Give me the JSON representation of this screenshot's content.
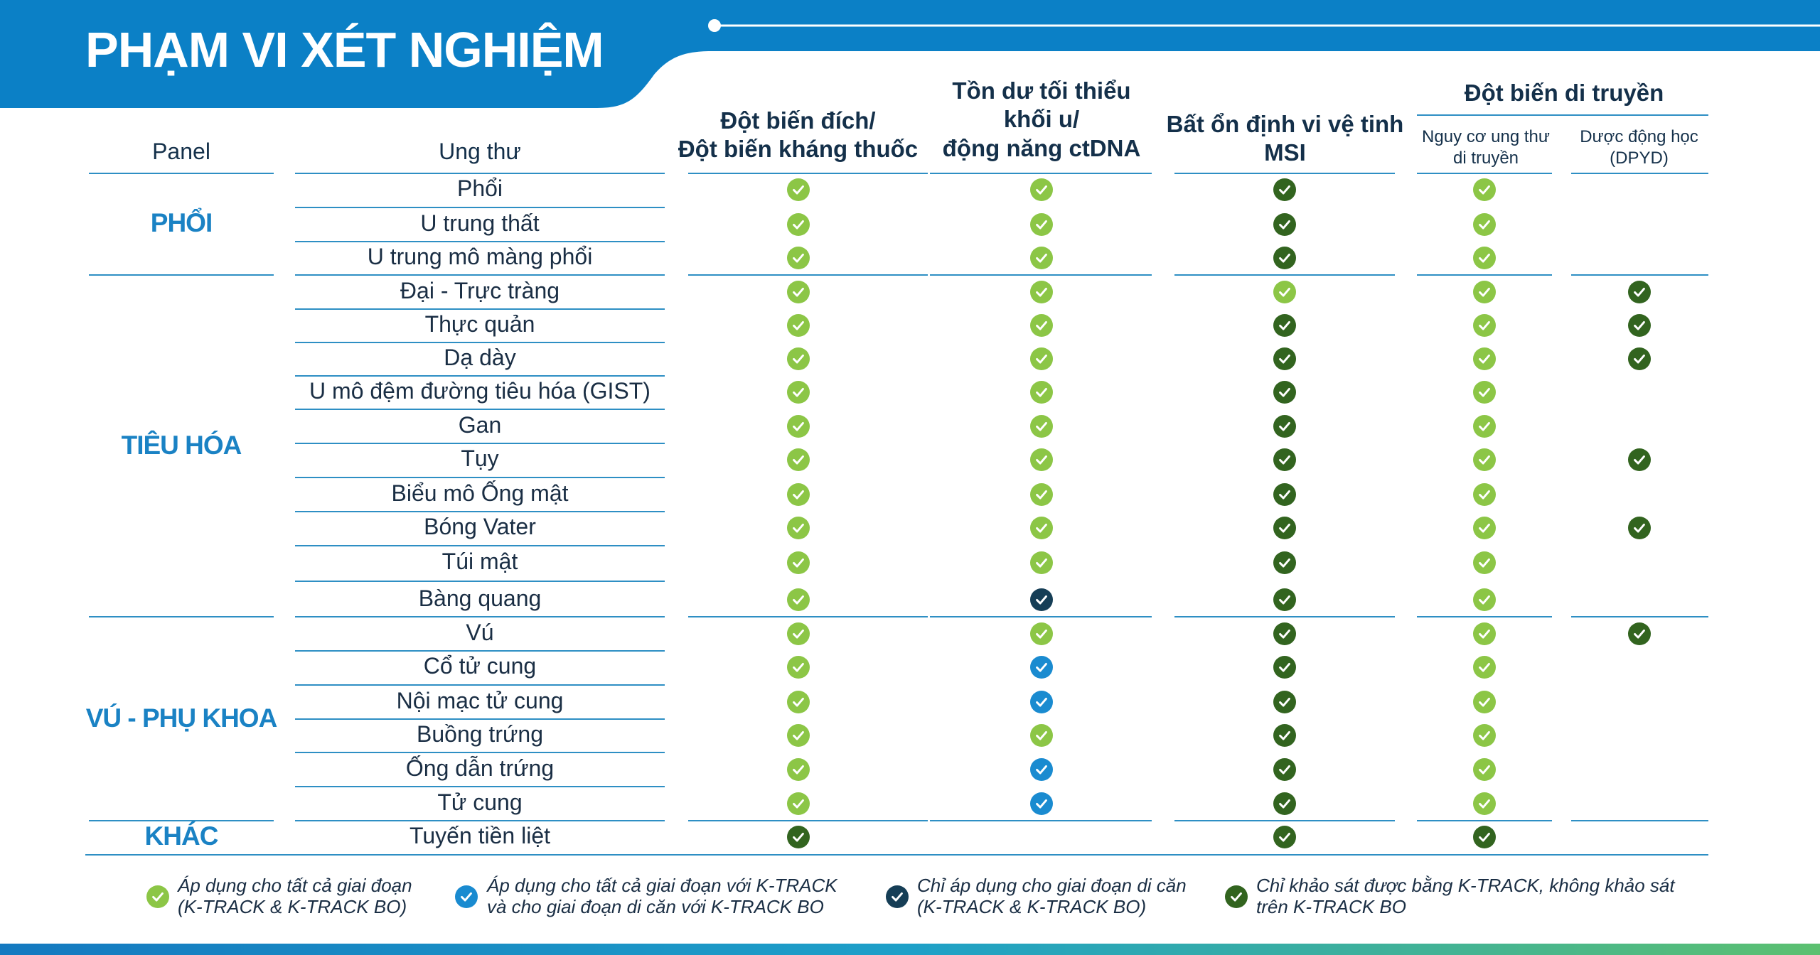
{
  "title": "PHẠM VI XÉT NGHIỆM",
  "colors": {
    "brand_blue": "#0b80c6",
    "light_green": "#8cc646",
    "blue": "#1a8bd0",
    "dark_navy": "#163e56",
    "dark_green": "#32641f"
  },
  "headers": {
    "panel": "Panel",
    "cancer": "Ung thư",
    "c1": [
      "Đột biến đích/",
      "Đột biến kháng thuốc"
    ],
    "c2": [
      "Tồn dư tối thiểu",
      "khối u/",
      "động năng ctDNA"
    ],
    "c3": [
      "Bất ổn định vi vệ tinh",
      "MSI"
    ],
    "group": "Đột biến di truyền",
    "c4": [
      "Nguy cơ ung thư",
      "di truyền"
    ],
    "c5": [
      "Dược động học",
      "(DPYD)"
    ]
  },
  "panels": [
    {
      "name": "PHỔI"
    },
    {
      "name": "TIÊU HÓA"
    },
    {
      "name": "VÚ - PHỤ KHOA"
    },
    {
      "name": "KHÁC"
    }
  ],
  "rows": [
    {
      "cancer": "Phổi",
      "marks": [
        "lg",
        "lg",
        "dg",
        "lg",
        ""
      ]
    },
    {
      "cancer": "U trung thất",
      "marks": [
        "lg",
        "lg",
        "dg",
        "lg",
        ""
      ]
    },
    {
      "cancer": "U trung mô màng phổi",
      "marks": [
        "lg",
        "lg",
        "dg",
        "lg",
        ""
      ]
    },
    {
      "cancer": "Đại - Trực tràng",
      "marks": [
        "lg",
        "lg",
        "lg",
        "lg",
        "dg"
      ]
    },
    {
      "cancer": "Thực quản",
      "marks": [
        "lg",
        "lg",
        "dg",
        "lg",
        "dg"
      ]
    },
    {
      "cancer": "Dạ dày",
      "marks": [
        "lg",
        "lg",
        "dg",
        "lg",
        "dg"
      ]
    },
    {
      "cancer": "U mô đệm đường tiêu hóa (GIST)",
      "marks": [
        "lg",
        "lg",
        "dg",
        "lg",
        ""
      ]
    },
    {
      "cancer": "Gan",
      "marks": [
        "lg",
        "lg",
        "dg",
        "lg",
        ""
      ]
    },
    {
      "cancer": "Tụy",
      "marks": [
        "lg",
        "lg",
        "dg",
        "lg",
        "dg"
      ]
    },
    {
      "cancer": "Biểu mô Ống mật",
      "marks": [
        "lg",
        "lg",
        "dg",
        "lg",
        ""
      ]
    },
    {
      "cancer": "Bóng Vater",
      "marks": [
        "lg",
        "lg",
        "dg",
        "lg",
        "dg"
      ]
    },
    {
      "cancer": "Túi mật",
      "marks": [
        "lg",
        "lg",
        "dg",
        "lg",
        ""
      ]
    },
    {
      "cancer": "Bàng quang",
      "marks": [
        "lg",
        "nv",
        "dg",
        "lg",
        ""
      ]
    },
    {
      "cancer": "Vú",
      "marks": [
        "lg",
        "lg",
        "dg",
        "lg",
        "dg"
      ]
    },
    {
      "cancer": "Cổ tử cung",
      "marks": [
        "lg",
        "bl",
        "dg",
        "lg",
        ""
      ]
    },
    {
      "cancer": "Nội mạc tử cung",
      "marks": [
        "lg",
        "bl",
        "dg",
        "lg",
        ""
      ]
    },
    {
      "cancer": "Buồng trứng",
      "marks": [
        "lg",
        "lg",
        "dg",
        "lg",
        ""
      ]
    },
    {
      "cancer": "Ống dẫn trứng",
      "marks": [
        "lg",
        "bl",
        "dg",
        "lg",
        ""
      ]
    },
    {
      "cancer": "Tử cung",
      "marks": [
        "lg",
        "bl",
        "dg",
        "lg",
        ""
      ]
    },
    {
      "cancer": "Tuyến tiền liệt",
      "marks": [
        "dg",
        "",
        "dg",
        "dg",
        ""
      ]
    }
  ],
  "legend": [
    {
      "type": "lg",
      "lines": [
        "Áp dụng cho tất cả giai đoạn",
        "(K-TRACK & K-TRACK BO)"
      ]
    },
    {
      "type": "bl",
      "lines": [
        "Áp dụng cho tất cả giai đoạn với K-TRACK",
        "và cho giai đoạn di căn với K-TRACK BO"
      ]
    },
    {
      "type": "nv",
      "lines": [
        "Chỉ áp dụng cho giai đoạn di căn",
        "(K-TRACK & K-TRACK BO)"
      ]
    },
    {
      "type": "dg",
      "lines": [
        "Chỉ khảo sát được bằng K-TRACK, không khảo sát",
        "trên K-TRACK BO"
      ]
    }
  ]
}
